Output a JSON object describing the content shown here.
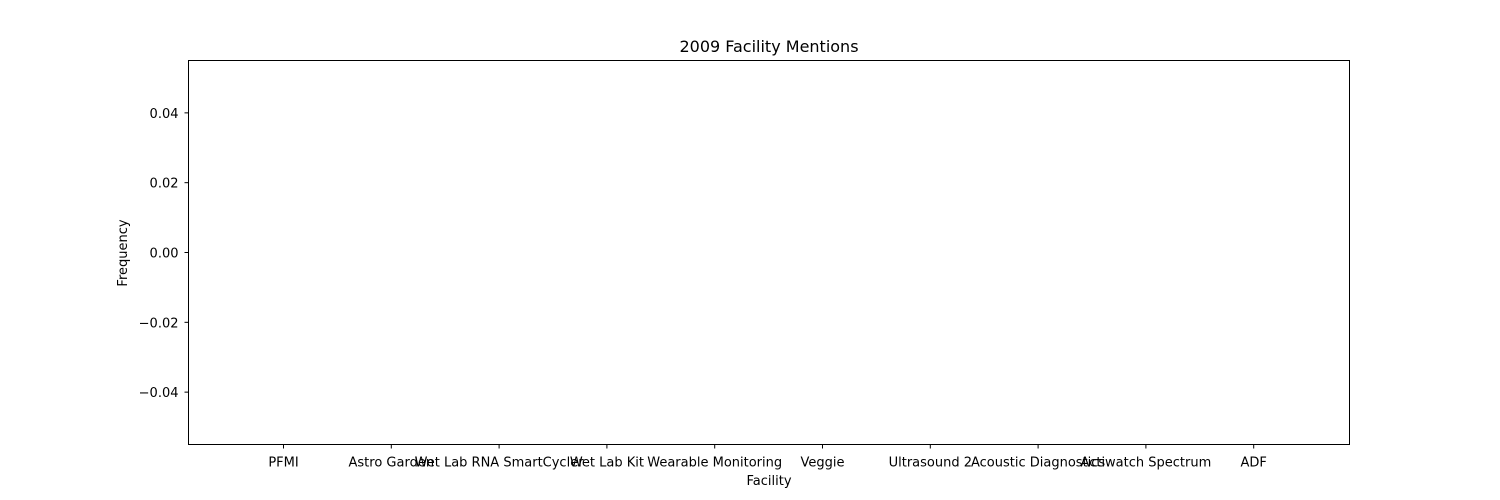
{
  "chart_data": {
    "type": "bar",
    "title": "2009 Facility Mentions",
    "xlabel": "Facility",
    "ylabel": "Frequency",
    "categories": [
      "PFMI",
      "Astro Garden",
      "Wet Lab RNA SmartCycler",
      "Wet Lab Kit",
      "Wearable Monitoring",
      "Veggie",
      "Ultrasound 2",
      "Acoustic Diagnostics",
      "Actiwatch Spectrum",
      "ADF"
    ],
    "values": [
      0,
      0,
      0,
      0,
      0,
      0,
      0,
      0,
      0,
      0
    ],
    "ylim": [
      -0.055,
      0.055
    ],
    "yticks": [
      0.04,
      0.02,
      0.0,
      -0.02,
      -0.04
    ],
    "ytick_labels": [
      "0.04",
      "0.02",
      "0.00",
      "−0.02",
      "−0.04"
    ],
    "grid": false,
    "colors": {
      "bar": "#1f77b4",
      "axis": "#000000",
      "background": "#ffffff"
    }
  }
}
